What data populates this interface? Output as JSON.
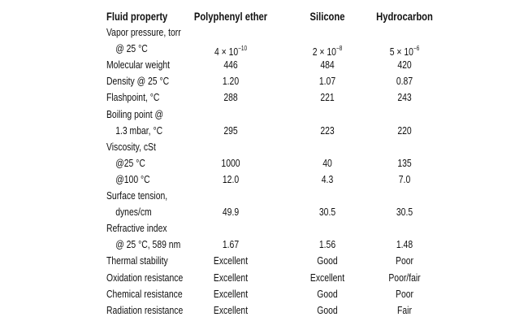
{
  "table": {
    "headers": [
      "Fluid property",
      "Polyphenyl ether",
      "Silicone",
      "Hydrocarbon"
    ],
    "rows": [
      {
        "label": "Vapor pressure, torr",
        "indent": false,
        "values": [
          "",
          "",
          ""
        ]
      },
      {
        "label": "@ 25 °C",
        "indent": true,
        "values": [
          "4 × 10",
          "2 × 10",
          "5 × 10"
        ],
        "exponents": [
          "−10",
          "−8",
          "−6"
        ]
      },
      {
        "label": "Molecular weight",
        "indent": false,
        "values": [
          "446",
          "484",
          "420"
        ]
      },
      {
        "label": "Density @ 25 °C",
        "indent": false,
        "values": [
          "1.20",
          "1.07",
          "0.87"
        ]
      },
      {
        "label": "Flashpoint, °C",
        "indent": false,
        "values": [
          "288",
          "221",
          "243"
        ]
      },
      {
        "label": "Boiling point @",
        "indent": false,
        "values": [
          "",
          "",
          ""
        ]
      },
      {
        "label": "1.3 mbar, °C",
        "indent": true,
        "values": [
          "295",
          "223",
          "220"
        ]
      },
      {
        "label": "Viscosity, cSt",
        "indent": false,
        "values": [
          "",
          "",
          ""
        ]
      },
      {
        "label": "@25 °C",
        "indent": true,
        "values": [
          "1000",
          "40",
          "135"
        ]
      },
      {
        "label": "@100 °C",
        "indent": true,
        "values": [
          "12.0",
          "4.3",
          "7.0"
        ]
      },
      {
        "label": "Surface tension,",
        "indent": false,
        "values": [
          "",
          "",
          ""
        ]
      },
      {
        "label": "dynes/cm",
        "indent": true,
        "values": [
          "49.9",
          "30.5",
          "30.5"
        ]
      },
      {
        "label": "Refractive index",
        "indent": false,
        "values": [
          "",
          "",
          ""
        ]
      },
      {
        "label": "@ 25 °C, 589 nm",
        "indent": true,
        "values": [
          "1.67",
          "1.56",
          "1.48"
        ]
      },
      {
        "label": "Thermal stability",
        "indent": false,
        "values": [
          "Excellent",
          "Good",
          "Poor"
        ]
      },
      {
        "label": "Oxidation resistance",
        "indent": false,
        "values": [
          "Excellent",
          "Excellent",
          "Poor/fair"
        ]
      },
      {
        "label": "Chemical resistance",
        "indent": false,
        "values": [
          "Excellent",
          "Good",
          "Poor"
        ]
      },
      {
        "label": "Radiation resistance",
        "indent": false,
        "values": [
          "Excellent",
          "Good",
          "Fair"
        ]
      }
    ]
  }
}
